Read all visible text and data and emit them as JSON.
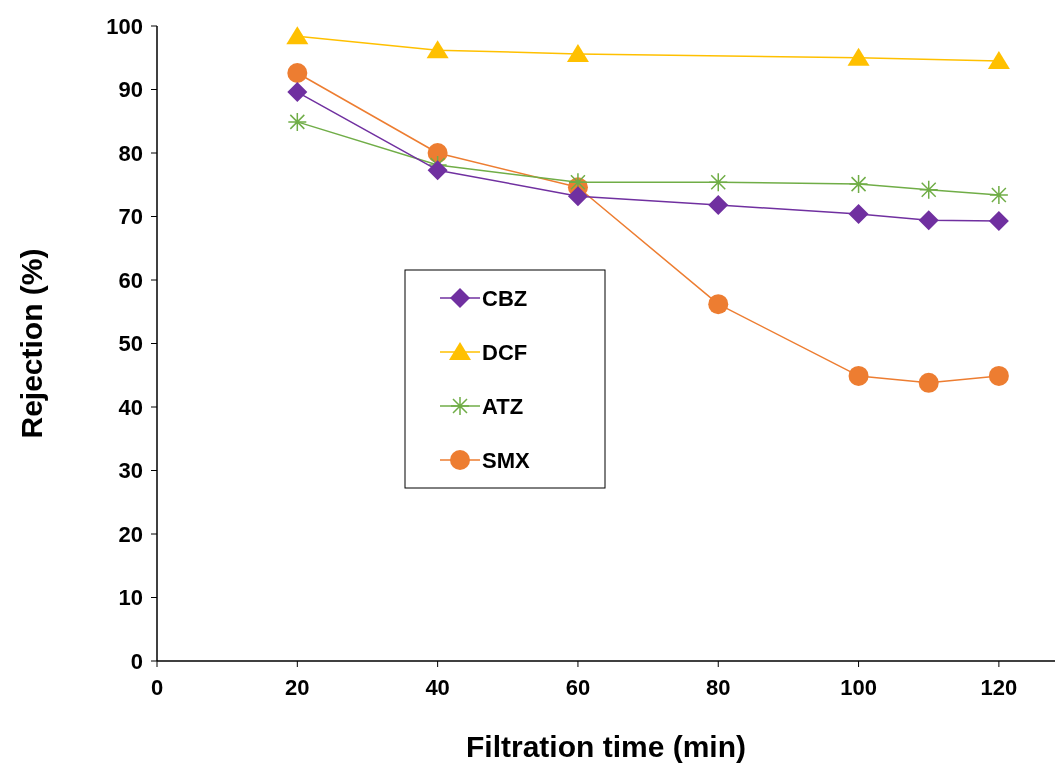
{
  "chart_data": {
    "type": "line",
    "xlabel": "Filtration time (min)",
    "ylabel": "Rejection (%)",
    "xlim": [
      0,
      128
    ],
    "xticks": [
      0,
      20,
      40,
      60,
      80,
      100,
      120
    ],
    "ylim": [
      0,
      100
    ],
    "yticks": [
      0,
      10,
      20,
      30,
      40,
      50,
      60,
      70,
      80,
      90,
      100
    ],
    "grid": false,
    "legend": "left",
    "line_style": "solid",
    "series": [
      {
        "name": "CBZ",
        "color": "#7030a0",
        "marker": "diamond",
        "x": [
          20,
          40,
          60,
          80,
          100,
          110,
          120
        ],
        "values": [
          89.6,
          77.3,
          73.2,
          71.8,
          70.4,
          69.4,
          69.3
        ]
      },
      {
        "name": "DCF",
        "color": "#ffc000",
        "marker": "triangle",
        "x": [
          20,
          40,
          60,
          100,
          120
        ],
        "values": [
          98.4,
          96.2,
          95.6,
          95.0,
          94.5
        ]
      },
      {
        "name": "ATZ",
        "color": "#70ad47",
        "marker": "cross",
        "x": [
          20,
          40,
          60,
          80,
          100,
          110,
          120
        ],
        "values": [
          84.9,
          78.1,
          75.4,
          75.4,
          75.1,
          74.2,
          73.4
        ]
      },
      {
        "name": "SMX",
        "color": "#ed7d31",
        "marker": "circle",
        "x": [
          20,
          40,
          60,
          80,
          100,
          110,
          120
        ],
        "values": [
          92.6,
          80.0,
          74.6,
          56.2,
          44.9,
          43.8,
          44.9
        ]
      }
    ]
  }
}
